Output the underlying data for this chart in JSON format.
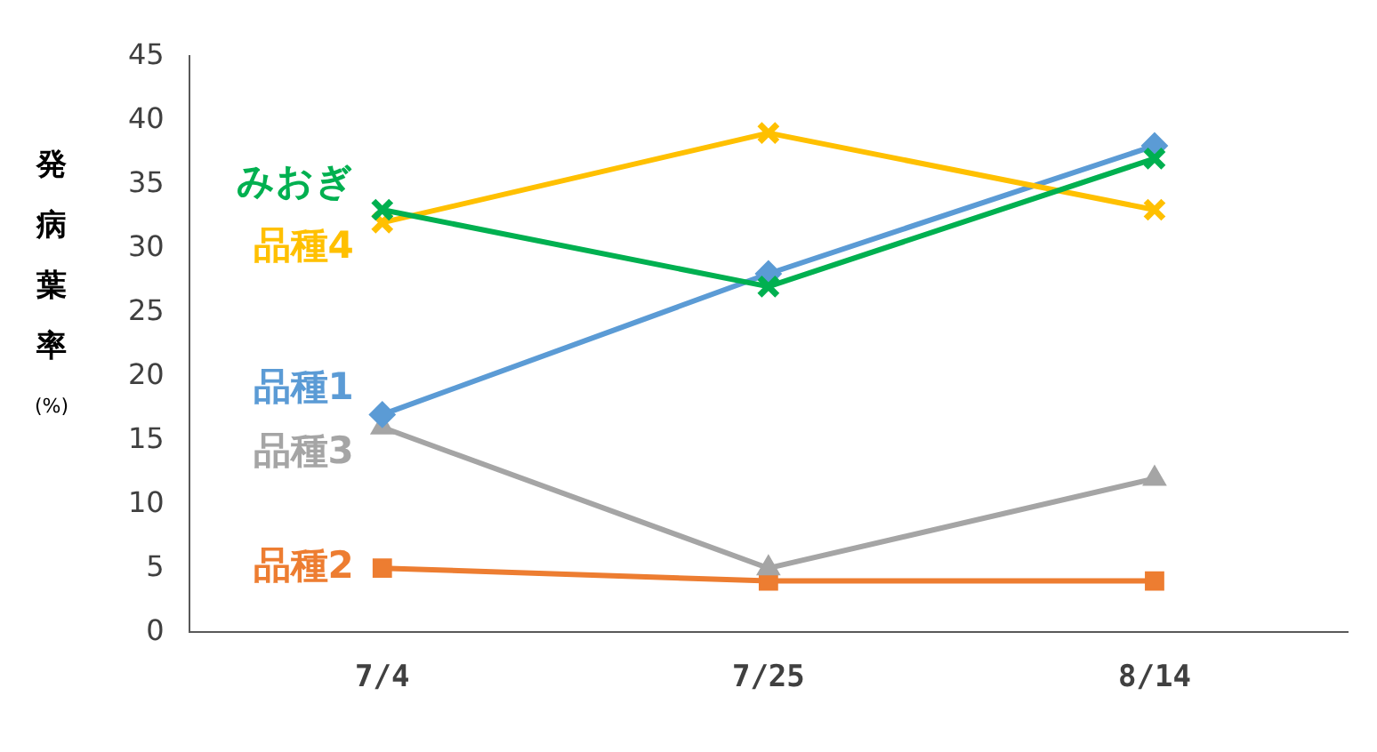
{
  "chart_data": {
    "type": "line",
    "ylabel": "発病葉率(%)",
    "categories": [
      "7/4",
      "7/25",
      "8/14"
    ],
    "series": [
      {
        "name": "みおぎ",
        "color": "#00b050",
        "values": [
          33,
          27,
          37
        ],
        "marker": "cross"
      },
      {
        "name": "品種4",
        "color": "#ffc000",
        "values": [
          32,
          39,
          33
        ],
        "marker": "cross"
      },
      {
        "name": "品種1",
        "color": "#5b9bd5",
        "values": [
          17,
          28,
          38
        ],
        "marker": "diamond"
      },
      {
        "name": "品種3",
        "color": "#a5a5a5",
        "values": [
          16,
          5,
          12
        ],
        "marker": "triangle"
      },
      {
        "name": "品種2",
        "color": "#ed7d31",
        "values": [
          5,
          4,
          4
        ],
        "marker": "square"
      }
    ],
    "ylim": [
      0,
      45
    ],
    "yticks": [
      0,
      5,
      10,
      15,
      20,
      25,
      30,
      35,
      40,
      45
    ],
    "grid": false,
    "legend": false,
    "line_style": "solid"
  }
}
